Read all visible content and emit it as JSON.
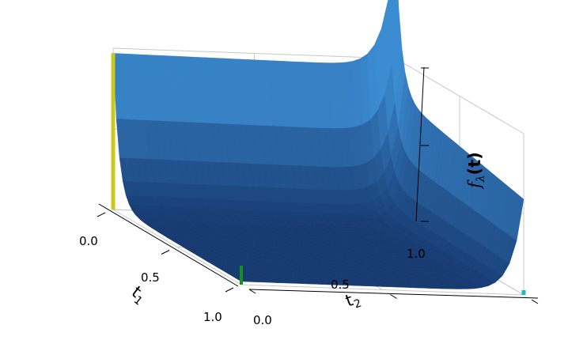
{
  "chart_data": {
    "type": "surface",
    "title": "",
    "xlabel": "t",
    "xlabel_sub": "1",
    "ylabel": "t",
    "ylabel_sub": "2",
    "zlabel": "f",
    "zlabel_sub": "λ",
    "zlabel_bold": "(t)",
    "x_ticks": [
      "0.0",
      "0.5",
      "1.0"
    ],
    "y_ticks": [
      "0.0",
      "0.5",
      "1.0"
    ],
    "z_ticks": [
      "",
      "",
      ""
    ],
    "xlim": [
      0,
      1
    ],
    "ylim": [
      0,
      1
    ],
    "grid": true,
    "surface_color": "#1f5fa8",
    "edge_lines": [
      {
        "name": "yellow",
        "color": "#c8c81e"
      },
      {
        "name": "green-back",
        "color": "#1a8f1a"
      },
      {
        "name": "green-front",
        "color": "#1a8f1a"
      },
      {
        "name": "cyan",
        "color": "#22b8c8"
      }
    ]
  }
}
